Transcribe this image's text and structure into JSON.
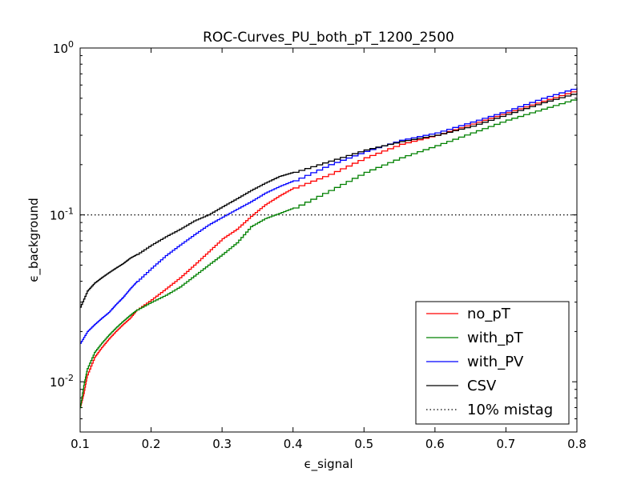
{
  "chart_data": {
    "type": "line",
    "title": "ROC-Curves_PU_both_pT_1200_2500",
    "xlabel": "ϵ_signal",
    "ylabel": "ϵ_background",
    "xlim": [
      0.1,
      0.8
    ],
    "ylim": [
      0.005,
      1.0
    ],
    "yscale": "log",
    "grid": false,
    "legend_position": "lower-right",
    "x_ticks": [
      "0.1",
      "0.2",
      "0.3",
      "0.4",
      "0.5",
      "0.6",
      "0.7",
      "0.8"
    ],
    "x_tick_values": [
      0.1,
      0.2,
      0.3,
      0.4,
      0.5,
      0.6,
      0.7,
      0.8
    ],
    "y_ticks": [
      {
        "value": 0.01,
        "base": "10",
        "exp": "-2"
      },
      {
        "value": 0.1,
        "base": "10",
        "exp": "-1"
      },
      {
        "value": 1,
        "base": "10",
        "exp": "0"
      }
    ],
    "series": [
      {
        "name": "no_pT",
        "color": "#ff0000",
        "style": "solid",
        "x": [
          0.1,
          0.105,
          0.11,
          0.12,
          0.13,
          0.14,
          0.15,
          0.16,
          0.17,
          0.18,
          0.2,
          0.22,
          0.24,
          0.26,
          0.28,
          0.3,
          0.32,
          0.34,
          0.36,
          0.38,
          0.4,
          0.45,
          0.5,
          0.55,
          0.6,
          0.65,
          0.7,
          0.75,
          0.8
        ],
        "y": [
          0.007,
          0.0085,
          0.011,
          0.014,
          0.016,
          0.018,
          0.02,
          0.022,
          0.024,
          0.027,
          0.031,
          0.036,
          0.042,
          0.05,
          0.06,
          0.072,
          0.082,
          0.098,
          0.115,
          0.13,
          0.145,
          0.175,
          0.22,
          0.265,
          0.3,
          0.35,
          0.41,
          0.48,
          0.56
        ]
      },
      {
        "name": "with_pT",
        "color": "#008000",
        "style": "solid",
        "x": [
          0.1,
          0.105,
          0.11,
          0.12,
          0.13,
          0.14,
          0.15,
          0.16,
          0.17,
          0.18,
          0.2,
          0.22,
          0.24,
          0.26,
          0.28,
          0.3,
          0.32,
          0.34,
          0.36,
          0.38,
          0.4,
          0.45,
          0.5,
          0.55,
          0.6,
          0.65,
          0.7,
          0.75,
          0.8
        ],
        "y": [
          0.007,
          0.0095,
          0.012,
          0.015,
          0.017,
          0.019,
          0.021,
          0.023,
          0.025,
          0.027,
          0.03,
          0.033,
          0.037,
          0.043,
          0.05,
          0.058,
          0.068,
          0.085,
          0.095,
          0.102,
          0.11,
          0.14,
          0.18,
          0.22,
          0.26,
          0.31,
          0.37,
          0.43,
          0.5
        ]
      },
      {
        "name": "with_PV",
        "color": "#0000ff",
        "style": "solid",
        "x": [
          0.1,
          0.11,
          0.12,
          0.13,
          0.14,
          0.15,
          0.16,
          0.17,
          0.18,
          0.2,
          0.22,
          0.24,
          0.26,
          0.28,
          0.3,
          0.32,
          0.34,
          0.36,
          0.38,
          0.4,
          0.45,
          0.5,
          0.55,
          0.6,
          0.65,
          0.7,
          0.75,
          0.8
        ],
        "y": [
          0.017,
          0.02,
          0.022,
          0.024,
          0.026,
          0.029,
          0.032,
          0.036,
          0.04,
          0.048,
          0.057,
          0.066,
          0.076,
          0.087,
          0.097,
          0.108,
          0.12,
          0.135,
          0.148,
          0.16,
          0.2,
          0.24,
          0.28,
          0.31,
          0.36,
          0.42,
          0.5,
          0.58
        ]
      },
      {
        "name": "CSV",
        "color": "#000000",
        "style": "solid",
        "x": [
          0.1,
          0.11,
          0.12,
          0.13,
          0.14,
          0.15,
          0.16,
          0.17,
          0.18,
          0.2,
          0.22,
          0.24,
          0.26,
          0.28,
          0.3,
          0.32,
          0.34,
          0.36,
          0.38,
          0.4,
          0.45,
          0.5,
          0.55,
          0.6,
          0.65,
          0.7,
          0.75,
          0.8
        ],
        "y": [
          0.028,
          0.035,
          0.039,
          0.042,
          0.045,
          0.048,
          0.051,
          0.055,
          0.058,
          0.066,
          0.074,
          0.082,
          0.092,
          0.1,
          0.112,
          0.125,
          0.14,
          0.155,
          0.17,
          0.18,
          0.21,
          0.245,
          0.275,
          0.3,
          0.34,
          0.4,
          0.47,
          0.54
        ]
      }
    ],
    "reference_lines": [
      {
        "name": "10% mistag",
        "y": 0.1,
        "style": "dotted",
        "color": "#000000"
      }
    ],
    "legend": [
      {
        "label": "no_pT",
        "color": "#ff0000",
        "style": "solid"
      },
      {
        "label": "with_pT",
        "color": "#008000",
        "style": "solid"
      },
      {
        "label": "with_PV",
        "color": "#0000ff",
        "style": "solid"
      },
      {
        "label": "CSV",
        "color": "#000000",
        "style": "solid"
      },
      {
        "label": "10% mistag",
        "color": "#000000",
        "style": "dotted"
      }
    ]
  }
}
